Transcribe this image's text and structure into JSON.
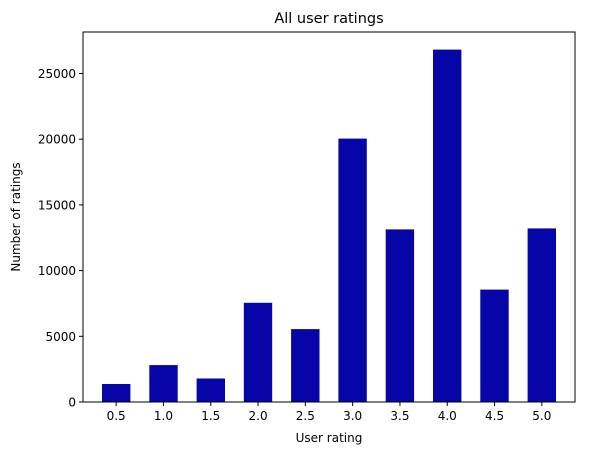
{
  "chart_data": {
    "type": "bar",
    "title": "All user ratings",
    "xlabel": "User rating",
    "ylabel": "Number of ratings",
    "categories": [
      "0.5",
      "1.0",
      "1.5",
      "2.0",
      "2.5",
      "3.0",
      "3.5",
      "4.0",
      "4.5",
      "5.0"
    ],
    "values": [
      1370,
      2811,
      1791,
      7551,
      5550,
      20047,
      13136,
      26818,
      8551,
      13211
    ],
    "ylim": [
      0,
      28159
    ],
    "yticks": [
      0,
      5000,
      10000,
      15000,
      20000,
      25000
    ],
    "bar_color": "#0606a8",
    "grid": false,
    "legend": "none"
  }
}
